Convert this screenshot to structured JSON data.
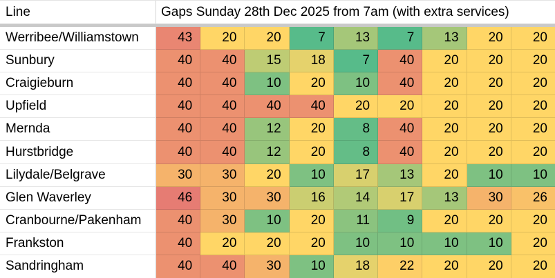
{
  "sheet": {
    "header": {
      "line_label": "Line",
      "title": "Gaps Sunday 28th Dec 2025 from 7am (with extra services)"
    },
    "color_scale": {
      "min_value": 7,
      "mid_value": 20,
      "max_value": 46,
      "min_color": "#57BB8A",
      "mid_color": "#FFD666",
      "max_color": "#E67C73"
    }
  },
  "chart_data": {
    "type": "heatmap",
    "title": "Gaps Sunday 28th Dec 2025 from 7am (with extra services)",
    "row_header": "Line",
    "unit": "minutes",
    "num_columns": 9,
    "columns_labeled": false,
    "rows": [
      "Werribee/Williamstown",
      "Sunbury",
      "Craigieburn",
      "Upfield",
      "Mernda",
      "Hurstbridge",
      "Lilydale/Belgrave",
      "Glen Waverley",
      "Cranbourne/Pakenham",
      "Frankston",
      "Sandringham"
    ],
    "values": [
      [
        43,
        20,
        20,
        7,
        13,
        7,
        13,
        20,
        20
      ],
      [
        40,
        40,
        15,
        18,
        7,
        40,
        20,
        20,
        20
      ],
      [
        40,
        40,
        10,
        20,
        10,
        40,
        20,
        20,
        20
      ],
      [
        40,
        40,
        40,
        40,
        20,
        20,
        20,
        20,
        20
      ],
      [
        40,
        40,
        12,
        20,
        8,
        40,
        20,
        20,
        20
      ],
      [
        40,
        40,
        12,
        20,
        8,
        40,
        20,
        20,
        20
      ],
      [
        30,
        30,
        20,
        10,
        17,
        13,
        20,
        10,
        10
      ],
      [
        46,
        30,
        30,
        16,
        14,
        17,
        13,
        30,
        26
      ],
      [
        40,
        30,
        10,
        20,
        11,
        9,
        20,
        20,
        20
      ],
      [
        40,
        20,
        20,
        20,
        10,
        10,
        10,
        10,
        20
      ],
      [
        40,
        40,
        30,
        10,
        18,
        22,
        20,
        20,
        20
      ]
    ]
  }
}
